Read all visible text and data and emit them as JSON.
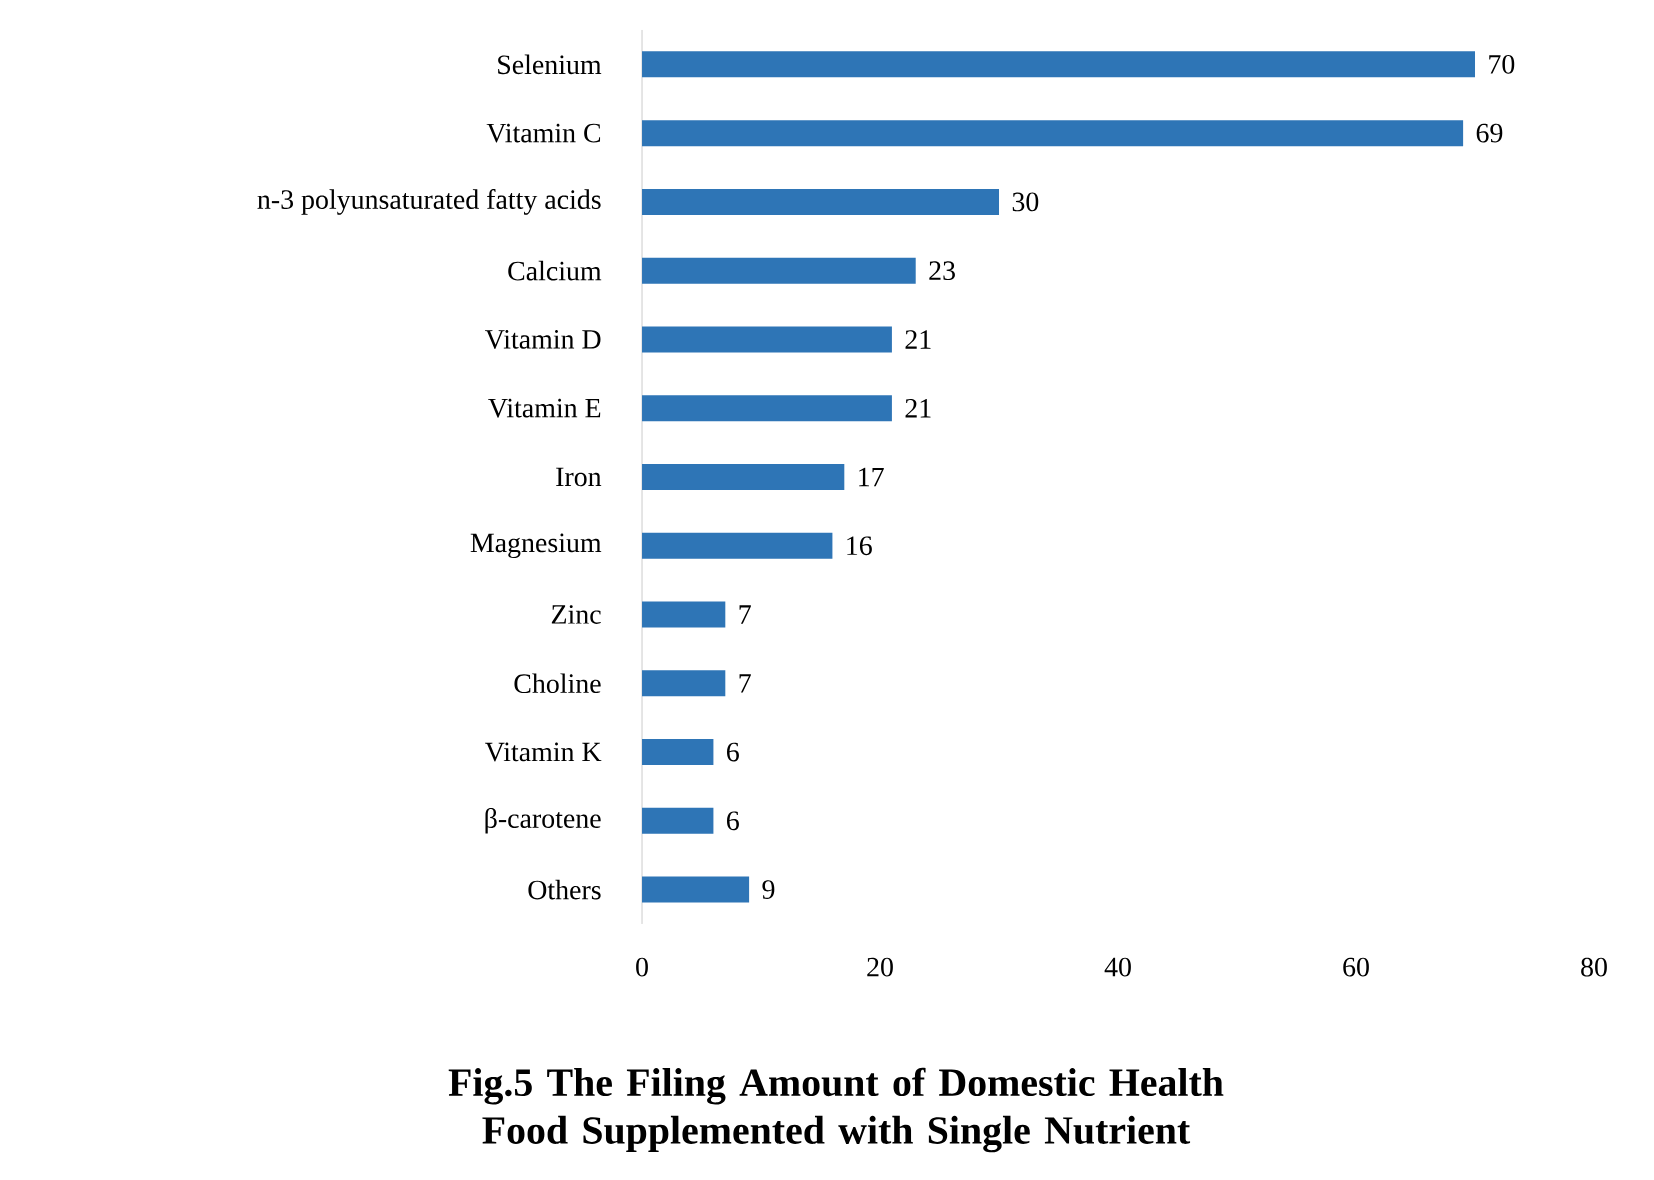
{
  "chart_data": {
    "type": "bar",
    "orientation": "horizontal",
    "title": "Fig.5 The Filing Amount of Domestic Health Food Supplemented with Single Nutrient",
    "categories": [
      "Selenium",
      "Vitamin C",
      "n-3 polyunsaturated fatty acids",
      "Calcium",
      "Vitamin D",
      "Vitamin E",
      "Iron",
      "Magnesium",
      "Zinc",
      "Choline",
      "Vitamin K",
      "β-carotene",
      "Others"
    ],
    "values": [
      70,
      69,
      30,
      23,
      21,
      21,
      17,
      16,
      7,
      7,
      6,
      6,
      9
    ],
    "color": "#2e75b6",
    "xlim": [
      0,
      80
    ],
    "xticks": [
      0,
      20,
      40,
      60,
      80
    ],
    "data_labels": true
  }
}
